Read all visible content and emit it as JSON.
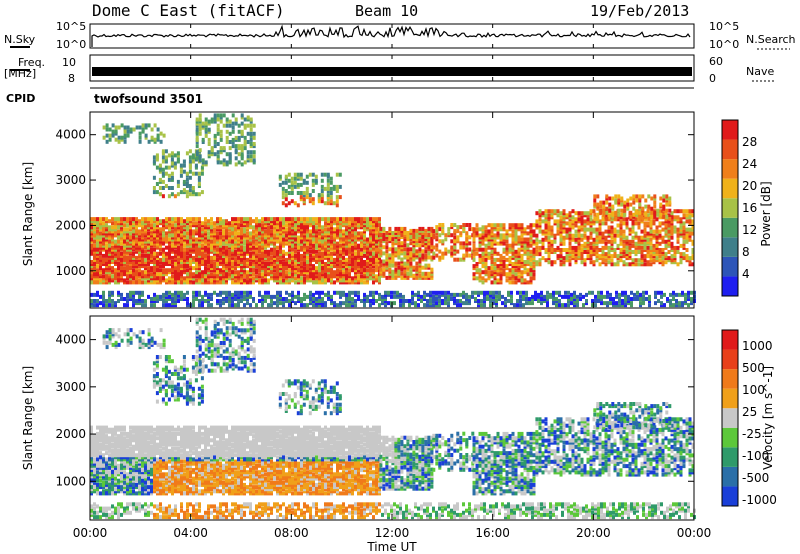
{
  "header": {
    "station": "Dome C East (fitACF)",
    "beam": "Beam 10",
    "date": "19/Feb/2013"
  },
  "top_panels": {
    "nsky_label": "N.Sky",
    "nsky_ticks": [
      "10^5",
      "10^0"
    ],
    "nsearch_label": "N.Search",
    "nsearch_ticks": [
      "10^5",
      "10^0"
    ],
    "freq_label": "Freq.",
    "freq_unit": "[MHz]",
    "freq_ticks": [
      "10",
      "8"
    ],
    "nave_label": "Nave",
    "nave_ticks": [
      "60",
      "0"
    ],
    "cpid_label": "CPID",
    "cpid_value": "twofsound 3501"
  },
  "chart_data": [
    {
      "type": "heatmap",
      "name": "power",
      "ylabel": "Slant Range [km]",
      "ylim": [
        180,
        4500
      ],
      "yticks": [
        1000,
        2000,
        3000,
        4000
      ],
      "xlim_hours": [
        0,
        24
      ],
      "colorbar": {
        "label": "Power [dB]",
        "range": [
          0,
          32
        ],
        "ticks": [
          4,
          8,
          12,
          16,
          20,
          24,
          28
        ],
        "colors": [
          "#1f1ff0",
          "#2d55b8",
          "#3f7f8a",
          "#4a9a63",
          "#a8c247",
          "#f0b21a",
          "#f07f1a",
          "#e8501a",
          "#e01a1a"
        ]
      }
    },
    {
      "type": "heatmap",
      "name": "velocity",
      "ylabel": "Slant Range [km]",
      "ylim": [
        180,
        4500
      ],
      "yticks": [
        1000,
        2000,
        3000,
        4000
      ],
      "xlim_hours": [
        0,
        24
      ],
      "colorbar": {
        "label": "Velocity [m s^-1]",
        "ticks": [
          "1000",
          "500",
          "100",
          "25",
          "-25",
          "-100",
          "-500",
          "-1000"
        ],
        "colors": [
          "#1a3fd8",
          "#2a6fa8",
          "#2f9a6a",
          "#5cc83a",
          "#c8c8c8",
          "#f0a01a",
          "#f07a1a",
          "#e8401a",
          "#e01a1a"
        ]
      }
    }
  ],
  "xaxis": {
    "label": "Time UT",
    "ticks": [
      "00:00",
      "04:00",
      "08:00",
      "12:00",
      "16:00",
      "20:00",
      "00:00"
    ]
  }
}
